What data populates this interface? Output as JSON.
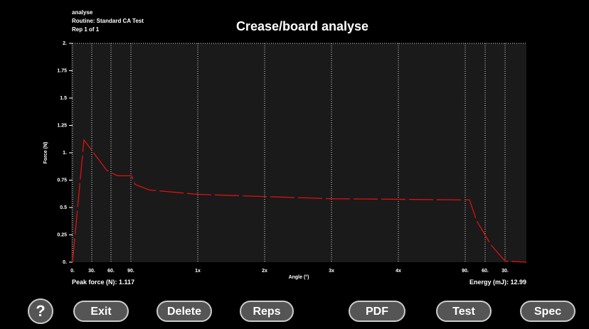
{
  "header": {
    "lines": [
      "analyse",
      "Routine: Standard CA Test",
      "Rep 1 of 1"
    ]
  },
  "chart_data": {
    "type": "line",
    "title": "Crease/board analyse",
    "x_label": "Angle (°)",
    "y_label": "Force (N)",
    "x": [
      0,
      16,
      48,
      63,
      83,
      88,
      108,
      176,
      269,
      364,
      458,
      542,
      558,
      568,
      588,
      608,
      638
    ],
    "series": [
      {
        "name": "Force",
        "color": "#e01010",
        "values": [
          0,
          1.117,
          0.84,
          0.79,
          0.79,
          0.71,
          0.66,
          0.62,
          0.6,
          0.58,
          0.575,
          0.57,
          0.57,
          0.38,
          0.16,
          0.01,
          0
        ]
      }
    ],
    "xlim": [
      0,
      638
    ],
    "ylim": [
      0,
      2
    ],
    "xticks": [
      {
        "value": 0,
        "label": "0."
      },
      {
        "value": 27,
        "label": "30."
      },
      {
        "value": 54,
        "label": "60."
      },
      {
        "value": 82,
        "label": "90."
      },
      {
        "value": 176,
        "label": "1x"
      },
      {
        "value": 270,
        "label": "2x"
      },
      {
        "value": 364,
        "label": "3x"
      },
      {
        "value": 458,
        "label": "4x"
      },
      {
        "value": 552,
        "label": "90."
      },
      {
        "value": 580,
        "label": "60."
      },
      {
        "value": 608,
        "label": "30."
      }
    ],
    "yticks": [
      {
        "value": 0,
        "label": "0."
      },
      0.25,
      0.5,
      0.75,
      {
        "value": 1,
        "label": "1."
      },
      1.25,
      1.5,
      1.75,
      {
        "value": 2,
        "label": "2."
      }
    ],
    "grid": true
  },
  "footer": {
    "peak_label": "Peak force (N):",
    "peak_value": 1.117,
    "energy_label": "Energy (mJ):",
    "energy_value": 12.99
  },
  "buttons": [
    "?",
    "Exit",
    "Delete",
    "Reps",
    "PDF",
    "Test",
    "Spec"
  ]
}
